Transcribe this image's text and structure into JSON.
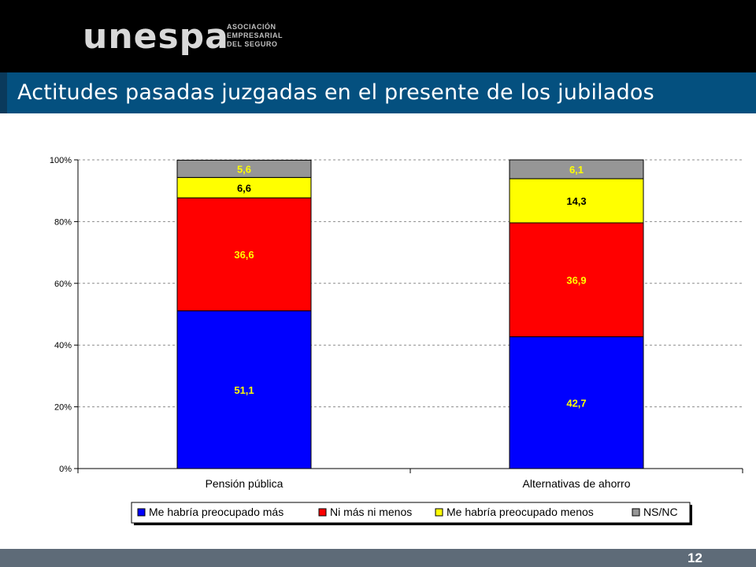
{
  "header": {
    "logo_text": "unespa",
    "logo_subtitle": "ASOCIACIÓN\nEMPRESARIAL\nDEL SEGURO",
    "title": "Actitudes pasadas juzgadas en el presente de los jubilados"
  },
  "footer": {
    "page_number": "12"
  },
  "chart_data": {
    "type": "bar",
    "stacked": true,
    "percent_scale": true,
    "categories": [
      "Pensión pública",
      "Alternativas de ahorro"
    ],
    "series": [
      {
        "name": "Me habría preocupado más",
        "values": [
          51.1,
          42.7
        ],
        "labels": [
          "51,1",
          "42,7"
        ],
        "color": "#0000ff",
        "label_color": "#ffff00"
      },
      {
        "name": "Ni más ni menos",
        "values": [
          36.6,
          36.9
        ],
        "labels": [
          "36,6",
          "36,9"
        ],
        "color": "#ff0000",
        "label_color": "#ffff00"
      },
      {
        "name": "Me habría preocupado menos",
        "values": [
          6.6,
          14.3
        ],
        "labels": [
          "6,6",
          "14,3"
        ],
        "color": "#ffff00",
        "label_color": "#000000"
      },
      {
        "name": "NS/NC",
        "values": [
          5.6,
          6.1
        ],
        "labels": [
          "5,6",
          "6,1"
        ],
        "color": "#969696",
        "label_color": "#ffff00"
      }
    ],
    "ylim": [
      0,
      100
    ],
    "yticks": [
      0,
      20,
      40,
      60,
      80,
      100
    ],
    "ytick_labels": [
      "0%",
      "20%",
      "40%",
      "60%",
      "80%",
      "100%"
    ],
    "grid": true,
    "legend_position": "bottom",
    "xlabel": "",
    "ylabel": ""
  }
}
